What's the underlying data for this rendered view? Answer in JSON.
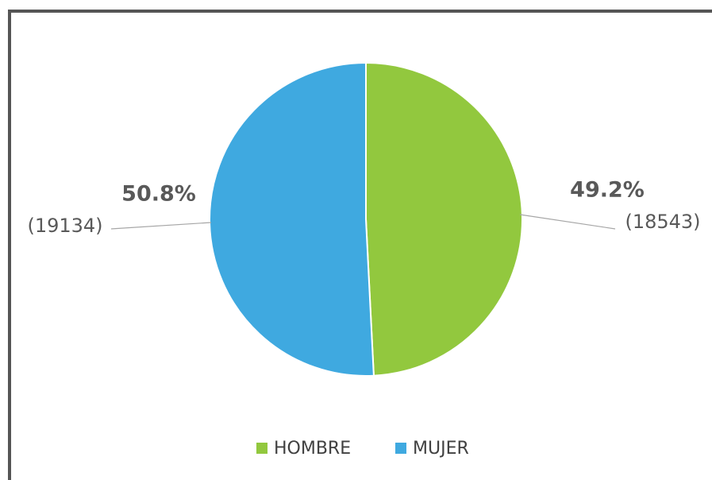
{
  "chart_data": {
    "type": "pie",
    "categories": [
      "HOMBRE",
      "MUJER"
    ],
    "values": [
      49.2,
      50.8
    ],
    "value_labels": [
      "49.2%",
      "50.8%"
    ],
    "counts": [
      18543,
      19134
    ],
    "count_labels": [
      "(18543)",
      "(19134)"
    ],
    "colors": [
      "#92c83e",
      "#3fa9e0"
    ],
    "legend": "bottom"
  }
}
